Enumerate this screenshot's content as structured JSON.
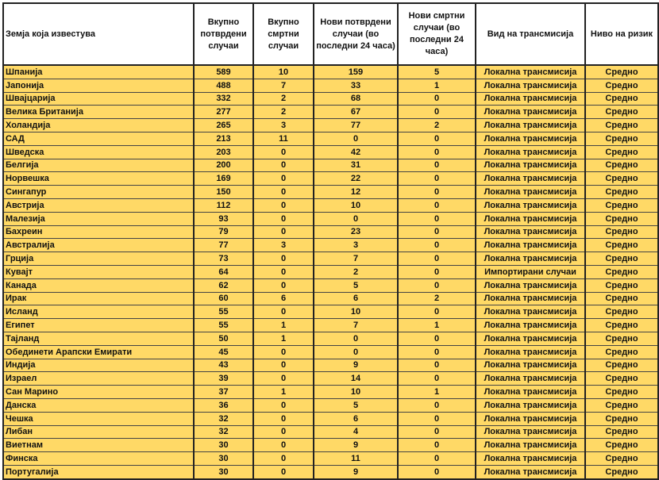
{
  "colors": {
    "row_fill": "#ffd966",
    "header_fill": "#ffffff"
  },
  "table": {
    "headers": [
      "Земја која известува",
      "Вкупно потврдени случаи",
      "Вкупно смртни случаи",
      "Нови потврдени случаи (во последни 24 часа)",
      "Нови смртни случаи (во последни 24 часа)",
      "Вид на трансмисија",
      "Ниво на ризик"
    ],
    "rows": [
      [
        "Шпанија",
        "589",
        "10",
        "159",
        "5",
        "Локална трансмисија",
        "Средно"
      ],
      [
        "Јапонија",
        "488",
        "7",
        "33",
        "1",
        "Локална трансмисија",
        "Средно"
      ],
      [
        "Швајцарија",
        "332",
        "2",
        "68",
        "0",
        "Локална трансмисија",
        "Средно"
      ],
      [
        "Велика Британија",
        "277",
        "2",
        "67",
        "0",
        "Локална трансмисија",
        "Средно"
      ],
      [
        "Холандија",
        "265",
        "3",
        "77",
        "2",
        "Локална трансмисија",
        "Средно"
      ],
      [
        "САД",
        "213",
        "11",
        "0",
        "0",
        "Локална трансмисија",
        "Средно"
      ],
      [
        "Шведска",
        "203",
        "0",
        "42",
        "0",
        "Локална трансмисија",
        "Средно"
      ],
      [
        "Белгија",
        "200",
        "0",
        "31",
        "0",
        "Локална трансмисија",
        "Средно"
      ],
      [
        "Норвешка",
        "169",
        "0",
        "22",
        "0",
        "Локална трансмисија",
        "Средно"
      ],
      [
        "Сингапур",
        "150",
        "0",
        "12",
        "0",
        "Локална трансмисија",
        "Средно"
      ],
      [
        "Австрија",
        "112",
        "0",
        "10",
        "0",
        "Локална трансмисија",
        "Средно"
      ],
      [
        "Малезија",
        "93",
        "0",
        "0",
        "0",
        "Локална трансмисија",
        "Средно"
      ],
      [
        "Бахреин",
        "79",
        "0",
        "23",
        "0",
        "Локална трансмисија",
        "Средно"
      ],
      [
        "Австралија",
        "77",
        "3",
        "3",
        "0",
        "Локална трансмисија",
        "Средно"
      ],
      [
        "Грција",
        "73",
        "0",
        "7",
        "0",
        "Локална трансмисија",
        "Средно"
      ],
      [
        "Кувајт",
        "64",
        "0",
        "2",
        "0",
        "Импортирани случаи",
        "Средно"
      ],
      [
        "Канада",
        "62",
        "0",
        "5",
        "0",
        "Локална трансмисија",
        "Средно"
      ],
      [
        "Ирак",
        "60",
        "6",
        "6",
        "2",
        "Локална трансмисија",
        "Средно"
      ],
      [
        "Исланд",
        "55",
        "0",
        "10",
        "0",
        "Локална трансмисија",
        "Средно"
      ],
      [
        "Египет",
        "55",
        "1",
        "7",
        "1",
        "Локална трансмисија",
        "Средно"
      ],
      [
        "Тајланд",
        "50",
        "1",
        "0",
        "0",
        "Локална трансмисија",
        "Средно"
      ],
      [
        "Обединети Арапски Емирати",
        "45",
        "0",
        "0",
        "0",
        "Локална трансмисија",
        "Средно"
      ],
      [
        "Индија",
        "43",
        "0",
        "9",
        "0",
        "Локална трансмисија",
        "Средно"
      ],
      [
        "Израел",
        "39",
        "0",
        "14",
        "0",
        "Локална трансмисија",
        "Средно"
      ],
      [
        "Сан Марино",
        "37",
        "1",
        "10",
        "1",
        "Локална трансмисија",
        "Средно"
      ],
      [
        "Данска",
        "36",
        "0",
        "5",
        "0",
        "Локална трансмисија",
        "Средно"
      ],
      [
        "Чешка",
        "32",
        "0",
        "6",
        "0",
        "Локална трансмисија",
        "Средно"
      ],
      [
        "Либан",
        "32",
        "0",
        "4",
        "0",
        "Локална трансмисија",
        "Средно"
      ],
      [
        "Виетнам",
        "30",
        "0",
        "9",
        "0",
        "Локална трансмисија",
        "Средно"
      ],
      [
        "Финска",
        "30",
        "0",
        "11",
        "0",
        "Локална трансмисија",
        "Средно"
      ],
      [
        "Португалија",
        "30",
        "0",
        "9",
        "0",
        "Локална трансмисија",
        "Средно"
      ]
    ]
  }
}
